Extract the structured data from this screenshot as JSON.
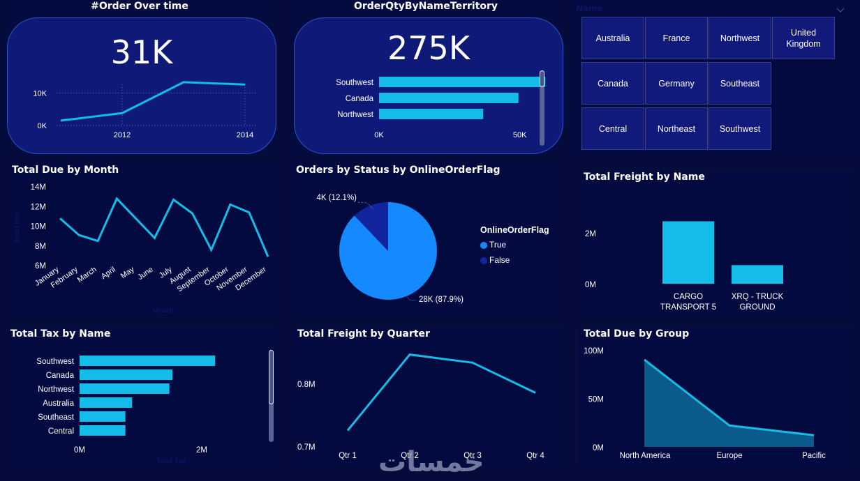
{
  "colors": {
    "background": "#050b3a",
    "panel": "#030a40",
    "card": "#0f1a78",
    "accent": "#14bde9",
    "pie_true": "#1589ff",
    "pie_false": "#12239e",
    "area_fill": "#0b5a8c"
  },
  "order_over_time": {
    "title": "#Order Over time",
    "kpi": "31K",
    "chart_data": {
      "type": "line",
      "x": [
        "2011",
        "2012",
        "2013",
        "2014"
      ],
      "values": [
        1500,
        3800,
        13300,
        12600
      ],
      "x_ticks": [
        "2012",
        "2014"
      ],
      "y_ticks": [
        "0K",
        "10K"
      ],
      "ylim": [
        0,
        15000
      ]
    }
  },
  "order_qty_territory": {
    "title": "OrderQtyByNameTerritory",
    "kpi": "275K",
    "chart_data": {
      "type": "bar",
      "orientation": "horizontal",
      "categories": [
        "Southwest",
        "Canada",
        "Northwest"
      ],
      "values": [
        59000,
        49500,
        37000
      ],
      "x_ticks": [
        "0K",
        "50K"
      ],
      "xlim": [
        0,
        60000
      ]
    },
    "scroll_position": 0
  },
  "slicer": {
    "header": "Name",
    "items": [
      "Australia",
      "France",
      "Northwest",
      "United Kingdom",
      "Canada",
      "Germany",
      "Southeast",
      "Central",
      "Northeast",
      "Southwest"
    ]
  },
  "total_due_by_month": {
    "title": "Total Due by Month",
    "chart_data": {
      "type": "line",
      "categories": [
        "January",
        "February",
        "March",
        "April",
        "May",
        "June",
        "July",
        "August",
        "September",
        "October",
        "November",
        "December"
      ],
      "values": [
        10.8,
        9.1,
        8.5,
        12.8,
        10.8,
        8.8,
        12.7,
        11.3,
        7.6,
        12.2,
        11.4,
        6.9
      ],
      "unit": "M",
      "y_ticks": [
        "6M",
        "8M",
        "10M",
        "12M",
        "14M"
      ],
      "ylim": [
        6,
        14
      ],
      "xlabel": "Month",
      "ylabel": "Total Due"
    }
  },
  "orders_by_status": {
    "title": "Orders by Status by OnlineOrderFlag",
    "chart_data": {
      "type": "pie",
      "legend_title": "OnlineOrderFlag",
      "slices": [
        {
          "name": "True",
          "value": 28000,
          "percent": 87.9,
          "label": "28K (87.9%)"
        },
        {
          "name": "False",
          "value": 4000,
          "percent": 12.1,
          "label": "4K (12.1%)"
        }
      ],
      "legend_position": "right"
    }
  },
  "total_freight_by_name": {
    "title": "Total Freight by Name",
    "chart_data": {
      "type": "bar",
      "categories": [
        "CARGO TRANSPORT 5",
        "XRQ - TRUCK GROUND"
      ],
      "category_lines": [
        [
          "CARGO",
          "TRANSPORT 5"
        ],
        [
          "XRQ - TRUCK",
          "GROUND"
        ]
      ],
      "values": [
        2.45,
        0.73
      ],
      "unit": "M",
      "y_ticks": [
        "0M",
        "2M"
      ],
      "ylim": [
        0,
        2.9
      ]
    }
  },
  "total_tax_by_name": {
    "title": "Total Tax by Name",
    "chart_data": {
      "type": "bar",
      "orientation": "horizontal",
      "categories": [
        "Southwest",
        "Canada",
        "Northwest",
        "Australia",
        "Southeast",
        "Central"
      ],
      "values": [
        2.22,
        1.52,
        1.47,
        0.86,
        0.75,
        0.75
      ],
      "unit": "M",
      "x_ticks": [
        "0M",
        "2M"
      ],
      "xlim": [
        0,
        2.85
      ],
      "xlabel": "Total Tax"
    }
  },
  "total_freight_by_quarter": {
    "title": "Total Freight by Quarter",
    "chart_data": {
      "type": "line",
      "categories": [
        "Qtr 1",
        "Qtr 2",
        "Qtr 3",
        "Qtr 4"
      ],
      "values": [
        0.725,
        0.846,
        0.833,
        0.785
      ],
      "unit": "M",
      "y_ticks": [
        "0.7M",
        "0.8M"
      ],
      "ylim": [
        0.7,
        0.86
      ]
    }
  },
  "total_due_by_group": {
    "title": "Total Due by Group",
    "chart_data": {
      "type": "area",
      "categories": [
        "North America",
        "Europe",
        "Pacific"
      ],
      "values": [
        90,
        22,
        12
      ],
      "unit": "M",
      "y_ticks": [
        "0M",
        "50M",
        "100M"
      ],
      "ylim": [
        0,
        100
      ]
    }
  },
  "watermark": "خمسات"
}
